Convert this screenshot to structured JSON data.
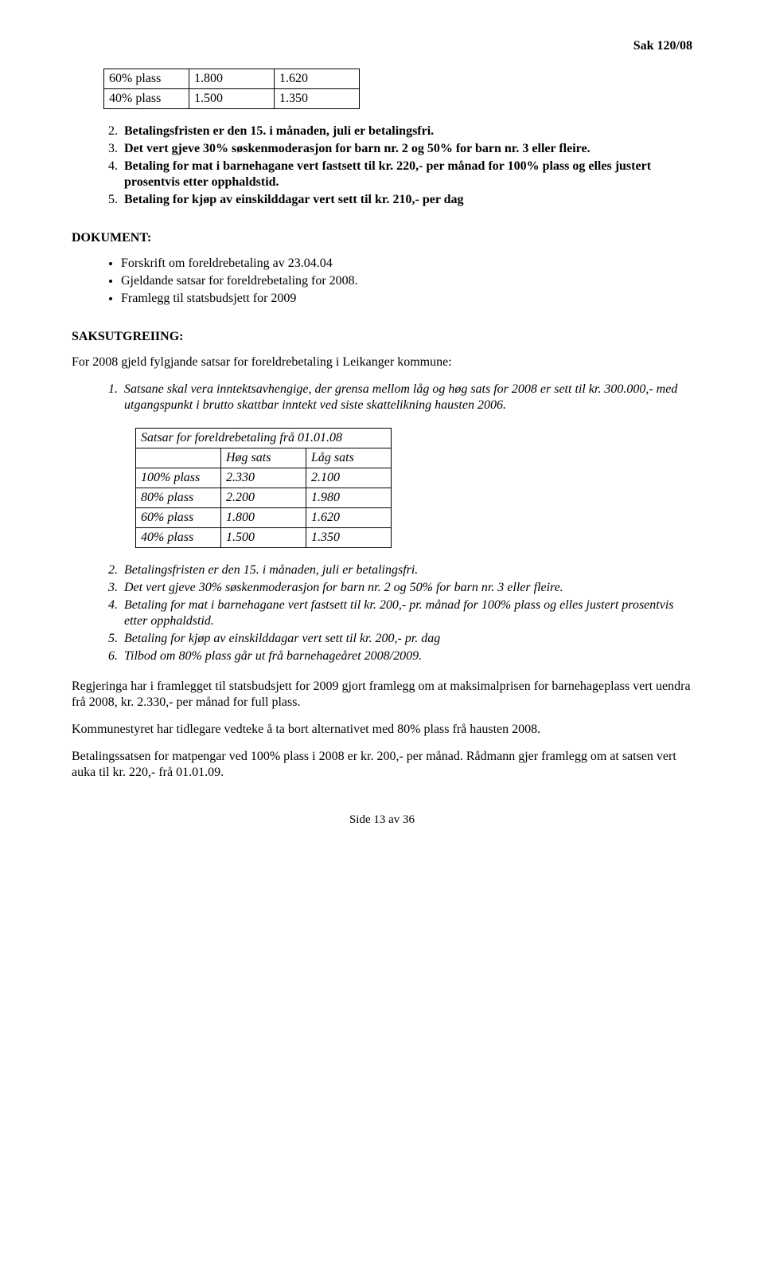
{
  "header": {
    "case_no": "Sak 120/08"
  },
  "table1": {
    "rows": [
      [
        "60% plass",
        "1.800",
        "1.620"
      ],
      [
        "40% plass",
        "1.500",
        "1.350"
      ]
    ]
  },
  "list1": [
    "Betalingsfristen er den 15. i månaden, juli er betalingsfri.",
    "Det vert gjeve 30% søskenmoderasjon for barn nr. 2 og 50% for barn nr. 3 eller fleire.",
    "Betaling for mat i barnehagane vert fastsett til kr. 220,- per månad for 100% plass og elles justert prosentvis etter opphaldstid.",
    "Betaling for kjøp av einskilddagar vert sett til kr. 210,- per dag"
  ],
  "list1_start": 2,
  "dokument": {
    "heading": "DOKUMENT:",
    "items": [
      "Forskrift om foreldrebetaling av 23.04.04",
      "Gjeldande satsar for foreldrebetaling for 2008.",
      "Framlegg til statsbudsjett for 2009"
    ]
  },
  "saks": {
    "heading": "SAKSUTGREIING:",
    "intro": "For 2008 gjeld fylgjande satsar for foreldrebetaling i Leikanger kommune:",
    "item1": "Satsane skal vera inntektsavhengige, der grensa mellom låg og høg sats for 2008 er sett til kr. 300.000,- med utgangspunkt i brutto skattbar inntekt ved siste skattelikning hausten 2006."
  },
  "table2": {
    "title": "Satsar for foreldrebetaling frå 01.01.08",
    "head": [
      "",
      "Høg sats",
      "Låg sats"
    ],
    "rows": [
      [
        "100% plass",
        "2.330",
        "2.100"
      ],
      [
        "80% plass",
        "2.200",
        "1.980"
      ],
      [
        "60% plass",
        "1.800",
        "1.620"
      ],
      [
        "40% plass",
        "1.500",
        "1.350"
      ]
    ]
  },
  "list2": [
    "Betalingsfristen er den 15. i månaden, juli er betalingsfri.",
    "Det vert gjeve 30% søskenmoderasjon for barn nr. 2 og 50% for barn nr. 3 eller fleire.",
    "Betaling for mat i barnehagane vert fastsett til kr. 200,- pr. månad for 100% plass og elles justert prosentvis etter opphaldstid.",
    "Betaling for kjøp av einskilddagar vert sett til kr. 200,- pr. dag",
    "Tilbod om 80% plass går ut frå barnehageåret 2008/2009."
  ],
  "list2_start": 2,
  "para1": "Regjeringa har i framlegget til statsbudsjett for 2009 gjort framlegg om at maksimalprisen for barnehageplass vert uendra frå 2008, kr. 2.330,- per månad for full plass.",
  "para2": "Kommunestyret har tidlegare vedteke å ta bort alternativet med 80% plass frå hausten 2008.",
  "para3": "Betalingssatsen for matpengar ved 100% plass i 2008 er kr. 200,- per månad. Rådmann gjer framlegg om at satsen vert auka til kr. 220,- frå 01.01.09.",
  "footer": "Side 13 av 36"
}
